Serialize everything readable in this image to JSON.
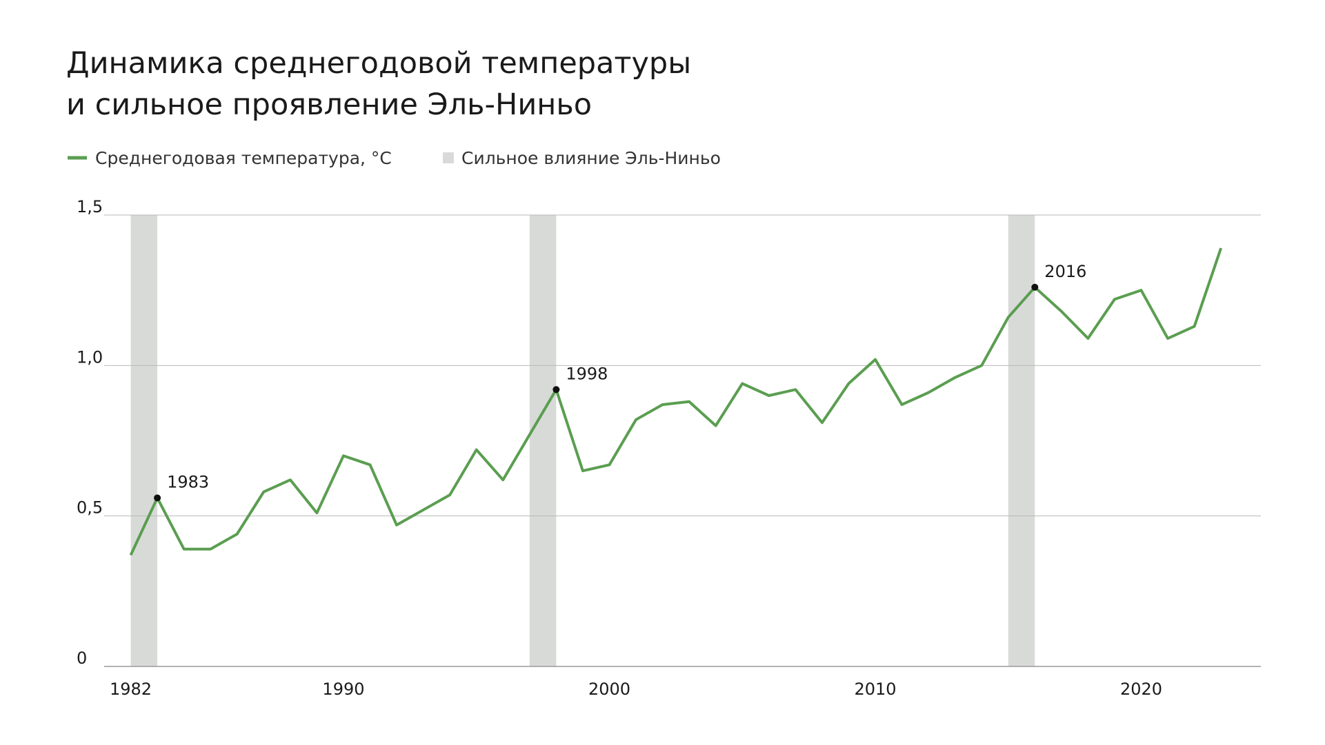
{
  "chart_data": {
    "type": "line",
    "title": [
      "Динамика среднегодовой температуры",
      "и сильное проявление Эль-Ниньо"
    ],
    "x": [
      1982,
      1983,
      1984,
      1985,
      1986,
      1987,
      1988,
      1989,
      1990,
      1991,
      1992,
      1993,
      1994,
      1995,
      1996,
      1997,
      1998,
      1999,
      2000,
      2001,
      2002,
      2003,
      2004,
      2005,
      2006,
      2007,
      2008,
      2009,
      2010,
      2011,
      2012,
      2013,
      2014,
      2015,
      2016,
      2017,
      2018,
      2019,
      2020,
      2021,
      2022,
      2023
    ],
    "series": [
      {
        "name": "Среднегодовая температура, °C",
        "color": "#5a9e50",
        "values": [
          0.37,
          0.56,
          0.39,
          0.39,
          0.44,
          0.58,
          0.62,
          0.51,
          0.7,
          0.67,
          0.47,
          0.52,
          0.57,
          0.72,
          0.62,
          0.77,
          0.92,
          0.65,
          0.67,
          0.82,
          0.87,
          0.88,
          0.8,
          0.94,
          0.9,
          0.92,
          0.81,
          0.94,
          1.02,
          0.87,
          0.91,
          0.96,
          1.0,
          1.16,
          1.26,
          1.18,
          1.09,
          1.22,
          1.25,
          1.09,
          1.13,
          1.39
        ]
      }
    ],
    "bands": {
      "name": "Сильное влияние Эль-Ниньо",
      "color": "#d8dad8",
      "ranges": [
        [
          1982,
          1983
        ],
        [
          1997,
          1998
        ],
        [
          2015,
          2016
        ]
      ]
    },
    "annotations": [
      1983,
      1998,
      2016
    ],
    "xlim": [
      1981,
      2024.5
    ],
    "xticks": [
      1982,
      1990,
      2000,
      2010,
      2020
    ],
    "ylim": [
      0,
      1.5
    ],
    "yticks": [
      0,
      {
        "value": 0.5,
        "label": "0,5"
      },
      {
        "value": 1.0,
        "label": "1,0"
      },
      {
        "value": 1.5,
        "label": "1,5"
      }
    ],
    "grid": true
  }
}
